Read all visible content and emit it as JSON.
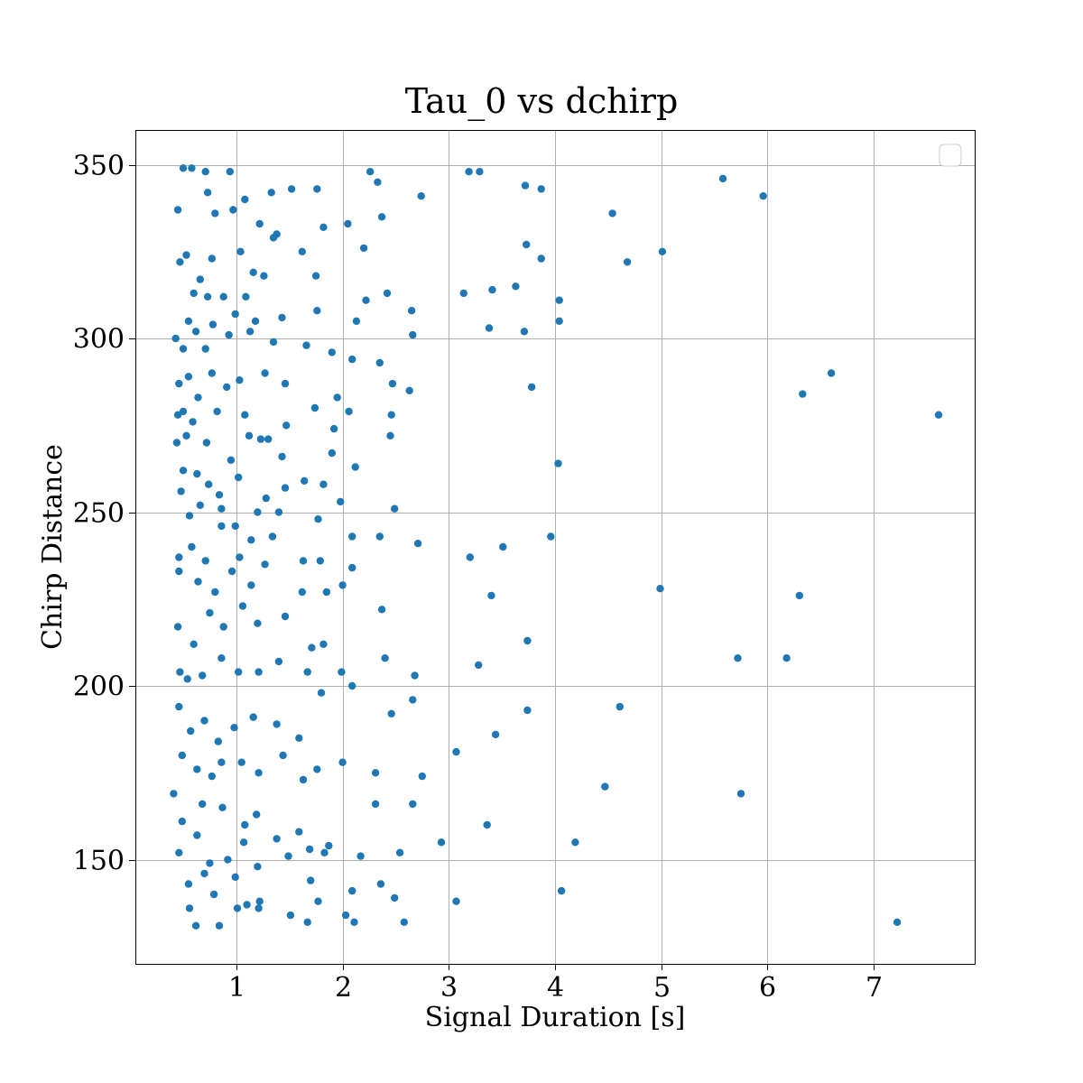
{
  "chart_data": {
    "type": "scatter",
    "title": "Tau_0 vs dchirp",
    "xlabel": "Signal Duration [s]",
    "ylabel": "Chirp Distance",
    "xlim": [
      0.05,
      7.95
    ],
    "ylim": [
      120,
      360
    ],
    "xticks": [
      1,
      2,
      3,
      4,
      5,
      6,
      7
    ],
    "yticks": [
      150,
      200,
      250,
      300,
      350
    ],
    "grid": true,
    "legend": "top-right (empty)",
    "point_color": "#1f77b4",
    "series": [
      {
        "points": [
          [
            0.5,
            349
          ],
          [
            0.58,
            349
          ],
          [
            0.71,
            348
          ],
          [
            0.94,
            348
          ],
          [
            1.33,
            342
          ],
          [
            1.52,
            343
          ],
          [
            1.76,
            343
          ],
          [
            2.26,
            348
          ],
          [
            2.33,
            345
          ],
          [
            2.74,
            341
          ],
          [
            3.19,
            348
          ],
          [
            3.29,
            348
          ],
          [
            3.72,
            344
          ],
          [
            3.87,
            343
          ],
          [
            5.58,
            346
          ],
          [
            5.96,
            341
          ],
          [
            0.45,
            337
          ],
          [
            0.73,
            342
          ],
          [
            0.8,
            336
          ],
          [
            0.97,
            337
          ],
          [
            1.08,
            340
          ],
          [
            1.22,
            333
          ],
          [
            1.38,
            330
          ],
          [
            1.62,
            325
          ],
          [
            1.82,
            332
          ],
          [
            2.05,
            333
          ],
          [
            2.37,
            335
          ],
          [
            4.54,
            336
          ],
          [
            4.68,
            322
          ],
          [
            5.01,
            325
          ],
          [
            0.47,
            322
          ],
          [
            0.53,
            324
          ],
          [
            0.66,
            317
          ],
          [
            0.77,
            323
          ],
          [
            1.04,
            325
          ],
          [
            1.16,
            319
          ],
          [
            1.35,
            329
          ],
          [
            1.75,
            318
          ],
          [
            2.2,
            326
          ],
          [
            3.73,
            327
          ],
          [
            3.87,
            323
          ],
          [
            0.6,
            313
          ],
          [
            0.73,
            312
          ],
          [
            0.88,
            312
          ],
          [
            1.09,
            312
          ],
          [
            1.26,
            318
          ],
          [
            2.22,
            311
          ],
          [
            2.42,
            313
          ],
          [
            3.14,
            313
          ],
          [
            3.41,
            314
          ],
          [
            3.63,
            315
          ],
          [
            4.04,
            311
          ],
          [
            0.55,
            305
          ],
          [
            0.62,
            302
          ],
          [
            0.78,
            304
          ],
          [
            0.99,
            307
          ],
          [
            1.18,
            305
          ],
          [
            1.43,
            306
          ],
          [
            1.76,
            308
          ],
          [
            2.13,
            305
          ],
          [
            2.65,
            308
          ],
          [
            3.38,
            303
          ],
          [
            3.71,
            302
          ],
          [
            4.04,
            305
          ],
          [
            0.43,
            300
          ],
          [
            0.5,
            297
          ],
          [
            0.71,
            297
          ],
          [
            0.93,
            301
          ],
          [
            1.13,
            302
          ],
          [
            1.35,
            299
          ],
          [
            1.66,
            298
          ],
          [
            1.9,
            296
          ],
          [
            2.09,
            294
          ],
          [
            2.35,
            293
          ],
          [
            2.66,
            301
          ],
          [
            0.46,
            287
          ],
          [
            0.55,
            289
          ],
          [
            0.64,
            283
          ],
          [
            0.77,
            290
          ],
          [
            0.91,
            286
          ],
          [
            1.03,
            288
          ],
          [
            1.27,
            290
          ],
          [
            1.46,
            287
          ],
          [
            1.95,
            283
          ],
          [
            2.47,
            287
          ],
          [
            2.63,
            285
          ],
          [
            3.78,
            286
          ],
          [
            6.33,
            284
          ],
          [
            6.6,
            290
          ],
          [
            0.45,
            278
          ],
          [
            0.5,
            279
          ],
          [
            0.59,
            276
          ],
          [
            0.82,
            279
          ],
          [
            1.08,
            278
          ],
          [
            1.23,
            271
          ],
          [
            1.47,
            275
          ],
          [
            1.74,
            280
          ],
          [
            1.92,
            274
          ],
          [
            2.06,
            279
          ],
          [
            2.46,
            278
          ],
          [
            7.61,
            278
          ],
          [
            0.44,
            270
          ],
          [
            0.53,
            272
          ],
          [
            0.72,
            270
          ],
          [
            0.95,
            265
          ],
          [
            1.12,
            272
          ],
          [
            1.3,
            271
          ],
          [
            1.43,
            266
          ],
          [
            1.9,
            267
          ],
          [
            2.12,
            263
          ],
          [
            2.45,
            272
          ],
          [
            4.03,
            264
          ],
          [
            0.5,
            262
          ],
          [
            0.63,
            261
          ],
          [
            0.74,
            258
          ],
          [
            0.84,
            255
          ],
          [
            1.02,
            260
          ],
          [
            1.28,
            254
          ],
          [
            1.46,
            257
          ],
          [
            1.64,
            259
          ],
          [
            1.82,
            258
          ],
          [
            2.49,
            251
          ],
          [
            0.48,
            256
          ],
          [
            0.56,
            249
          ],
          [
            0.66,
            252
          ],
          [
            0.86,
            251
          ],
          [
            0.99,
            246
          ],
          [
            1.2,
            250
          ],
          [
            1.4,
            250
          ],
          [
            1.77,
            248
          ],
          [
            1.98,
            253
          ],
          [
            2.09,
            243
          ],
          [
            2.35,
            243
          ],
          [
            2.71,
            241
          ],
          [
            0.46,
            237
          ],
          [
            0.58,
            240
          ],
          [
            0.71,
            236
          ],
          [
            0.86,
            246
          ],
          [
            1.03,
            237
          ],
          [
            1.14,
            242
          ],
          [
            1.34,
            243
          ],
          [
            1.63,
            236
          ],
          [
            1.79,
            236
          ],
          [
            2.09,
            234
          ],
          [
            3.2,
            237
          ],
          [
            3.51,
            240
          ],
          [
            3.96,
            243
          ],
          [
            0.46,
            233
          ],
          [
            0.64,
            230
          ],
          [
            0.8,
            227
          ],
          [
            0.96,
            233
          ],
          [
            1.14,
            229
          ],
          [
            1.27,
            235
          ],
          [
            1.62,
            227
          ],
          [
            1.85,
            227
          ],
          [
            2.0,
            229
          ],
          [
            2.37,
            222
          ],
          [
            3.4,
            226
          ],
          [
            4.99,
            228
          ],
          [
            6.3,
            226
          ],
          [
            0.45,
            217
          ],
          [
            0.6,
            212
          ],
          [
            0.75,
            221
          ],
          [
            0.88,
            217
          ],
          [
            1.06,
            223
          ],
          [
            1.2,
            218
          ],
          [
            1.46,
            220
          ],
          [
            1.71,
            211
          ],
          [
            1.82,
            212
          ],
          [
            2.4,
            208
          ],
          [
            3.74,
            213
          ],
          [
            5.72,
            208
          ],
          [
            6.18,
            208
          ],
          [
            0.47,
            204
          ],
          [
            0.54,
            202
          ],
          [
            0.68,
            203
          ],
          [
            0.86,
            208
          ],
          [
            1.02,
            204
          ],
          [
            1.21,
            204
          ],
          [
            1.4,
            207
          ],
          [
            1.67,
            204
          ],
          [
            1.99,
            204
          ],
          [
            2.09,
            200
          ],
          [
            2.68,
            203
          ],
          [
            3.28,
            206
          ],
          [
            0.46,
            194
          ],
          [
            0.57,
            187
          ],
          [
            0.7,
            190
          ],
          [
            0.83,
            184
          ],
          [
            0.98,
            188
          ],
          [
            1.16,
            191
          ],
          [
            1.38,
            189
          ],
          [
            1.59,
            185
          ],
          [
            1.8,
            198
          ],
          [
            2.0,
            178
          ],
          [
            2.46,
            192
          ],
          [
            2.66,
            196
          ],
          [
            3.74,
            193
          ],
          [
            4.61,
            194
          ],
          [
            0.49,
            180
          ],
          [
            0.63,
            176
          ],
          [
            0.77,
            174
          ],
          [
            0.86,
            178
          ],
          [
            1.05,
            178
          ],
          [
            1.21,
            175
          ],
          [
            1.44,
            180
          ],
          [
            1.63,
            173
          ],
          [
            1.76,
            176
          ],
          [
            2.31,
            175
          ],
          [
            2.75,
            174
          ],
          [
            3.07,
            181
          ],
          [
            3.44,
            186
          ],
          [
            4.47,
            171
          ],
          [
            5.75,
            169
          ],
          [
            0.41,
            169
          ],
          [
            0.49,
            161
          ],
          [
            0.68,
            166
          ],
          [
            0.87,
            165
          ],
          [
            1.08,
            160
          ],
          [
            1.19,
            163
          ],
          [
            1.38,
            156
          ],
          [
            1.59,
            158
          ],
          [
            1.83,
            152
          ],
          [
            2.31,
            166
          ],
          [
            2.66,
            166
          ],
          [
            3.36,
            160
          ],
          [
            0.46,
            152
          ],
          [
            0.63,
            157
          ],
          [
            0.75,
            149
          ],
          [
            0.92,
            150
          ],
          [
            1.07,
            155
          ],
          [
            1.2,
            148
          ],
          [
            1.49,
            151
          ],
          [
            1.69,
            153
          ],
          [
            1.87,
            154
          ],
          [
            2.17,
            151
          ],
          [
            2.54,
            152
          ],
          [
            2.93,
            155
          ],
          [
            4.19,
            155
          ],
          [
            0.55,
            143
          ],
          [
            0.7,
            146
          ],
          [
            0.79,
            140
          ],
          [
            0.99,
            145
          ],
          [
            1.1,
            137
          ],
          [
            1.22,
            138
          ],
          [
            1.51,
            134
          ],
          [
            1.7,
            144
          ],
          [
            1.77,
            138
          ],
          [
            2.09,
            141
          ],
          [
            2.36,
            143
          ],
          [
            2.49,
            139
          ],
          [
            3.07,
            138
          ],
          [
            4.06,
            141
          ],
          [
            0.56,
            136
          ],
          [
            0.62,
            131
          ],
          [
            0.84,
            131
          ],
          [
            1.01,
            136
          ],
          [
            1.21,
            136
          ],
          [
            1.67,
            132
          ],
          [
            2.03,
            134
          ],
          [
            2.11,
            132
          ],
          [
            2.58,
            132
          ],
          [
            7.22,
            132
          ]
        ]
      }
    ]
  }
}
